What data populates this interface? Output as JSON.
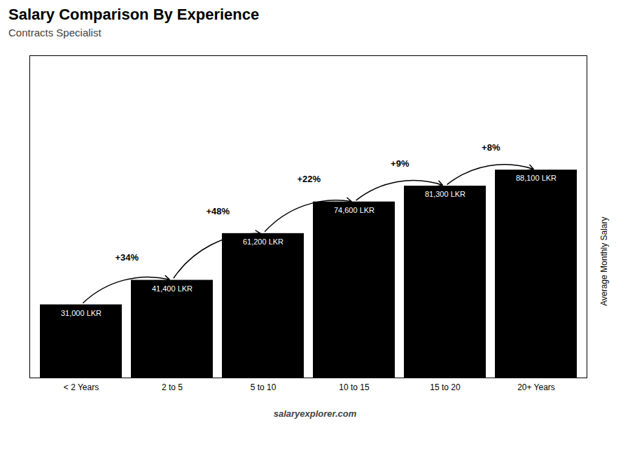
{
  "chart_data": {
    "type": "bar",
    "title": "Salary Comparison By Experience",
    "subtitle": "Contracts Specialist",
    "ylabel": "Average Monthly Salary",
    "caption": "salaryexplorer.com",
    "categories": [
      "< 2 Years",
      "2 to 5",
      "5 to 10",
      "10 to 15",
      "15 to 20",
      "20+ Years"
    ],
    "values": [
      31000,
      41400,
      61200,
      74600,
      81300,
      88100
    ],
    "value_labels": [
      "31,000 LKR",
      "41,400 LKR",
      "61,200 LKR",
      "74,600 LKR",
      "81,300 LKR",
      "88,100 LKR"
    ],
    "data_labels": true,
    "annotations": [
      "+34%",
      "+48%",
      "+22%",
      "+9%",
      "+8%"
    ],
    "ylim": [
      0,
      136555
    ],
    "tick_labels": "x",
    "grid": false
  }
}
